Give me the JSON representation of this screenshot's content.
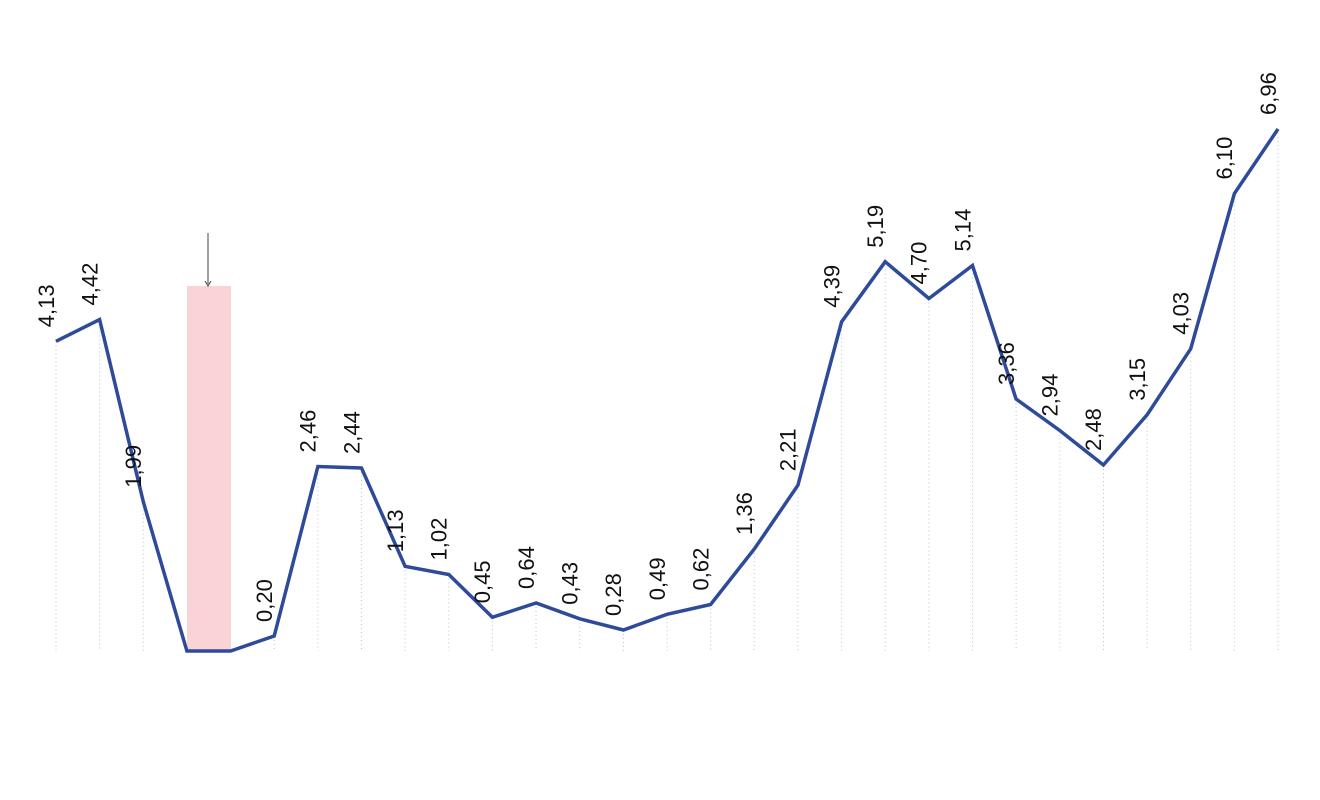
{
  "chart_data": {
    "type": "line",
    "categories": [
      null,
      null,
      null,
      null,
      null,
      null,
      null,
      null,
      null,
      null,
      null,
      null,
      null,
      null,
      null,
      null,
      null,
      null,
      null,
      null,
      null,
      null,
      null,
      null,
      null,
      null,
      null,
      null,
      null
    ],
    "values": [
      4.13,
      4.42,
      1.99,
      0,
      0,
      0.2,
      2.46,
      2.44,
      1.13,
      1.02,
      0.45,
      0.64,
      0.43,
      0.28,
      0.49,
      0.62,
      1.36,
      2.21,
      4.39,
      5.19,
      4.7,
      5.14,
      3.36,
      2.94,
      2.48,
      3.15,
      4.03,
      6.1,
      6.96
    ],
    "value_labels": [
      "4,13",
      "4,42",
      "1,99",
      null,
      null,
      "0,20",
      "2,46",
      "2,44",
      "1,13",
      "1,02",
      "0,45",
      "0,64",
      "0,43",
      "0,28",
      "0,49",
      "0,62",
      "1,36",
      "2,21",
      "4,39",
      "5,19",
      "4,70",
      "5,14",
      "3,36",
      "2,94",
      "2,48",
      "3,15",
      "4,03",
      "6,10",
      "6,96"
    ],
    "color": "#2e4a9a",
    "ylim": [
      0,
      8
    ],
    "grid": true
  }
}
